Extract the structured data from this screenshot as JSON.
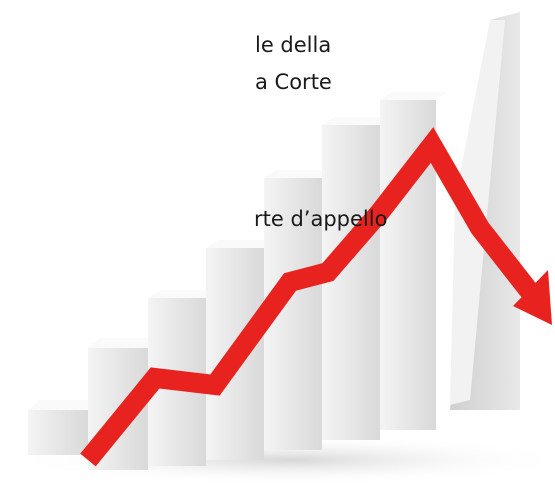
{
  "text": {
    "lines": [
      "le della",
      "a Corte",
      "rte d’appello"
    ]
  }
}
